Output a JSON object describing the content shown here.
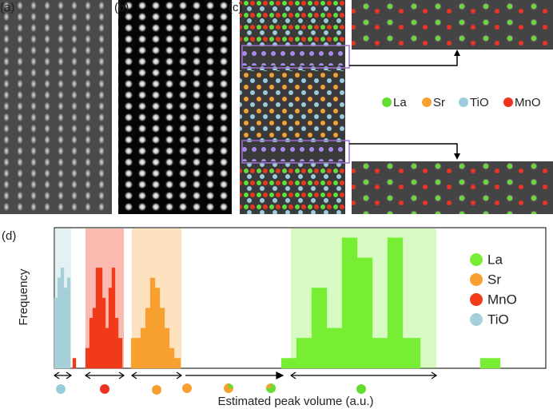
{
  "panel_labels": [
    "(a)",
    "(b)",
    "(c)",
    "(d)"
  ],
  "atom_legend": [
    {
      "label": "La",
      "color": "#66dd33"
    },
    {
      "label": "Sr",
      "color": "#f5a030"
    },
    {
      "label": "TiO",
      "color": "#99ccdd"
    },
    {
      "label": "MnO",
      "color": "#ee3322"
    }
  ],
  "chart_data": {
    "type": "histogram",
    "ylabel": "Frequency",
    "xlabel": "Estimated peak volume (a.u.)",
    "xlim": [
      0,
      615
    ],
    "ylim": [
      0,
      14
    ],
    "series": [
      {
        "name": "La",
        "color": "#77ee33",
        "band": [
          296,
          478
        ],
        "bins": [
          284,
          303,
          322,
          341,
          360,
          379,
          398,
          417,
          436,
          458,
          533,
          558
        ],
        "values": [
          1,
          3,
          8,
          4,
          13,
          11,
          3,
          13,
          3,
          0,
          1
        ]
      },
      {
        "name": "Sr",
        "color": "#f7a030",
        "band": [
          97,
          159
        ],
        "bins": [
          96,
          102,
          108,
          114,
          120,
          126,
          132,
          138,
          144,
          150,
          158
        ],
        "values": [
          3,
          3,
          4,
          6,
          9,
          8,
          6,
          4,
          2,
          1
        ]
      },
      {
        "name": "MnO",
        "color": "#f03a1a",
        "band": [
          39,
          87
        ],
        "bins": [
          23,
          27,
          39,
          44,
          48,
          52,
          56,
          60,
          64,
          68,
          72,
          76,
          80,
          85
        ],
        "values": [
          1,
          0,
          2,
          5,
          6,
          10,
          10,
          7,
          4,
          8,
          10,
          5,
          3
        ]
      },
      {
        "name": "TiO",
        "color": "#a6cfd8",
        "band": [
          0,
          21
        ],
        "bins": [
          0,
          4,
          8,
          12,
          16,
          20
        ],
        "values": [
          7,
          9,
          10,
          8,
          9
        ]
      }
    ]
  }
}
